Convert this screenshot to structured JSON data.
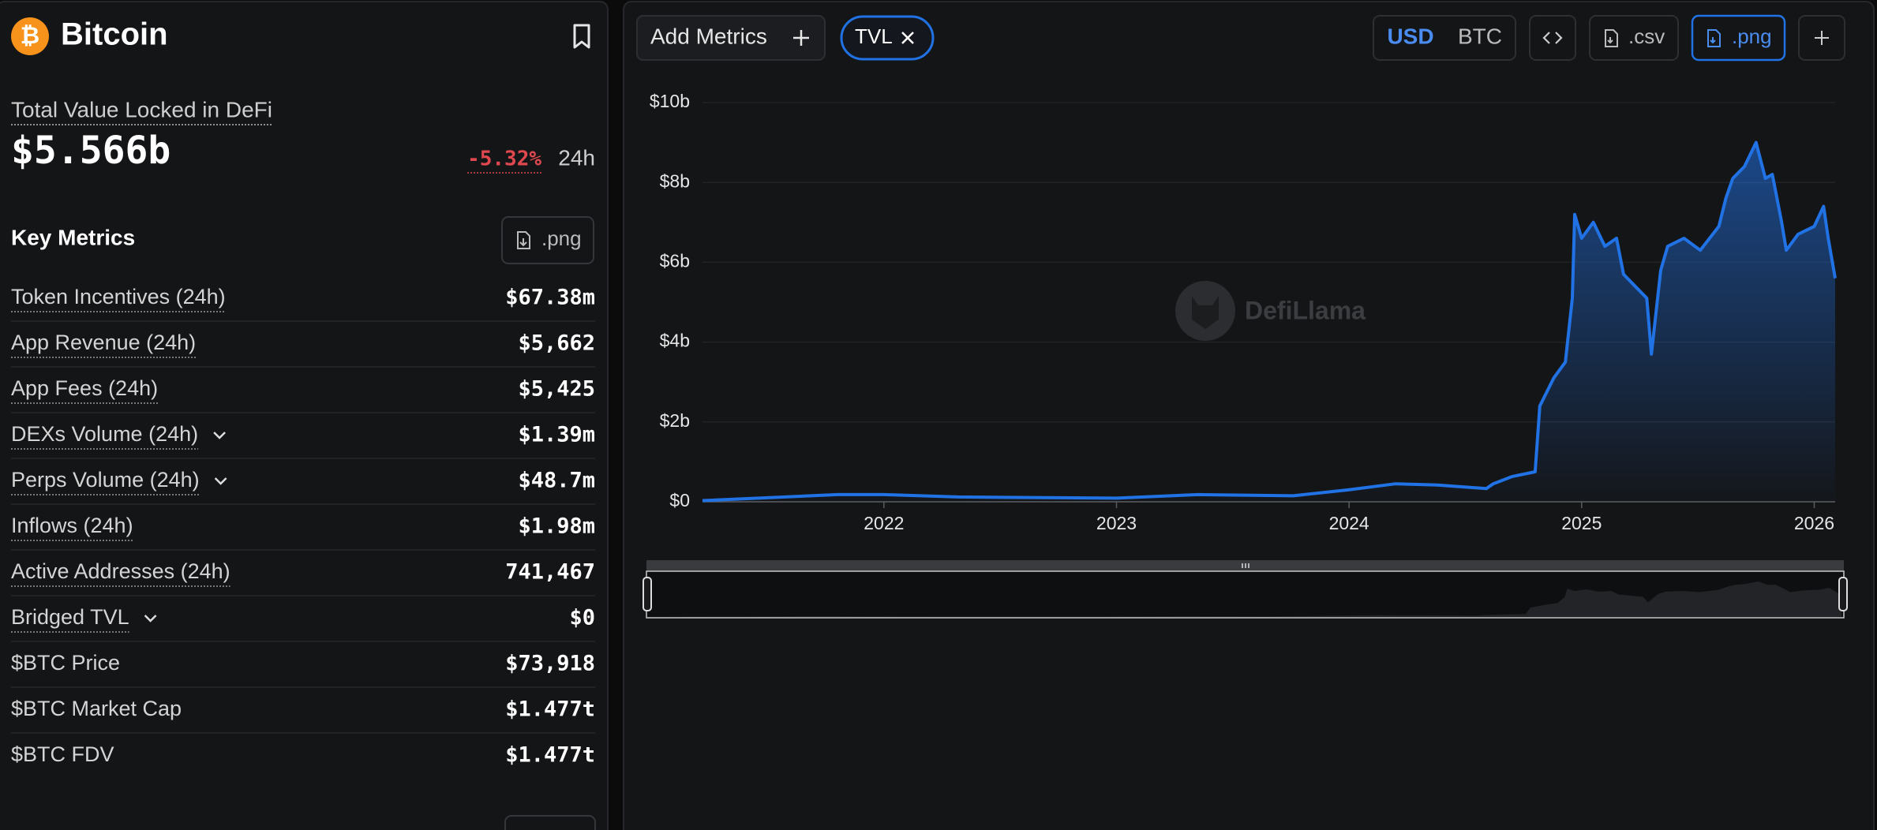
{
  "header": {
    "title": "Bitcoin"
  },
  "tvl": {
    "label": "Total Value Locked in DeFi",
    "value": "$5.566b",
    "change": "-5.32%",
    "period": "24h"
  },
  "key_metrics": {
    "title": "Key Metrics",
    "button": ".png",
    "rows": [
      {
        "label": "Token Incentives (24h)",
        "value": "$67.38m",
        "underlined": true,
        "expandable": false
      },
      {
        "label": "App Revenue (24h)",
        "value": "$5,662",
        "underlined": true,
        "expandable": false
      },
      {
        "label": "App Fees (24h)",
        "value": "$5,425",
        "underlined": true,
        "expandable": false
      },
      {
        "label": "DEXs Volume (24h)",
        "value": "$1.39m",
        "underlined": true,
        "expandable": true
      },
      {
        "label": "Perps Volume (24h)",
        "value": "$48.7m",
        "underlined": true,
        "expandable": true
      },
      {
        "label": "Inflows (24h)",
        "value": "$1.98m",
        "underlined": true,
        "expandable": false
      },
      {
        "label": "Active Addresses (24h)",
        "value": "741,467",
        "underlined": true,
        "expandable": false
      },
      {
        "label": "Bridged TVL",
        "value": "$0",
        "underlined": true,
        "expandable": true
      },
      {
        "label": "$BTC Price",
        "value": "$73,918",
        "underlined": false,
        "expandable": false
      },
      {
        "label": "$BTC Market Cap",
        "value": "$1.477t",
        "underlined": false,
        "expandable": false
      },
      {
        "label": "$BTC FDV",
        "value": "$1.477t",
        "underlined": false,
        "expandable": false
      }
    ]
  },
  "toolbar": {
    "add_metrics": "Add Metrics",
    "tag": "TVL",
    "currencies": [
      "USD",
      "BTC"
    ],
    "active_currency": 0,
    "csv": ".csv",
    "png": ".png"
  },
  "watermark": "DefiLlama",
  "chart_data": {
    "type": "area",
    "color": "#2172e5",
    "grid": true,
    "xlim": [
      2021.22,
      2026.09
    ],
    "xticks": [
      2022,
      2023,
      2024,
      2025,
      2026
    ],
    "ylim": [
      0,
      10
    ],
    "yticks": [
      {
        "value": 0,
        "label": "$0"
      },
      {
        "value": 2,
        "label": "$2b"
      },
      {
        "value": 4,
        "label": "$4b"
      },
      {
        "value": 6,
        "label": "$6b"
      },
      {
        "value": 8,
        "label": "$8b"
      },
      {
        "value": 10,
        "label": "$10b"
      }
    ],
    "series": [
      {
        "name": "TVL",
        "x": [
          2021.22,
          2021.8,
          2022.0,
          2022.32,
          2023.0,
          2023.35,
          2023.76,
          2024.0,
          2024.2,
          2024.38,
          2024.59,
          2024.62,
          2024.7,
          2024.8,
          2024.82,
          2024.88,
          2024.93,
          2024.96,
          2024.97,
          2025.0,
          2025.05,
          2025.1,
          2025.15,
          2025.18,
          2025.23,
          2025.28,
          2025.3,
          2025.34,
          2025.37,
          2025.44,
          2025.51,
          2025.59,
          2025.62,
          2025.65,
          2025.7,
          2025.75,
          2025.79,
          2025.82,
          2025.86,
          2025.88,
          2025.93,
          2026.0,
          2026.04,
          2026.06,
          2026.09
        ],
        "values": [
          0.03,
          0.18,
          0.18,
          0.12,
          0.09,
          0.18,
          0.15,
          0.3,
          0.45,
          0.42,
          0.33,
          0.45,
          0.63,
          0.75,
          2.4,
          3.1,
          3.5,
          5.1,
          7.2,
          6.6,
          7.0,
          6.4,
          6.6,
          5.7,
          5.4,
          5.1,
          3.7,
          5.8,
          6.4,
          6.6,
          6.3,
          6.9,
          7.6,
          8.1,
          8.4,
          9.0,
          8.1,
          8.2,
          7.0,
          6.3,
          6.7,
          6.9,
          7.4,
          6.6,
          5.6
        ]
      }
    ]
  }
}
